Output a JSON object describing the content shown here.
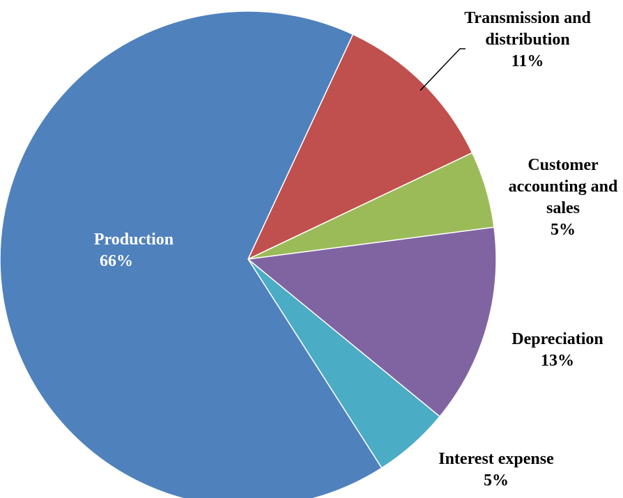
{
  "chart_data": {
    "type": "pie",
    "categories": [
      "Production",
      "Transmission and distribution",
      "Customer accounting and sales",
      "Depreciation",
      "Interest expense"
    ],
    "values": [
      66,
      11,
      5,
      13,
      5
    ],
    "value_labels": [
      "66%",
      "11%",
      "5%",
      "13%",
      "5%"
    ],
    "colors": [
      "#4f81bd",
      "#c0504d",
      "#9bbb59",
      "#8064a2",
      "#4bacc6"
    ]
  }
}
